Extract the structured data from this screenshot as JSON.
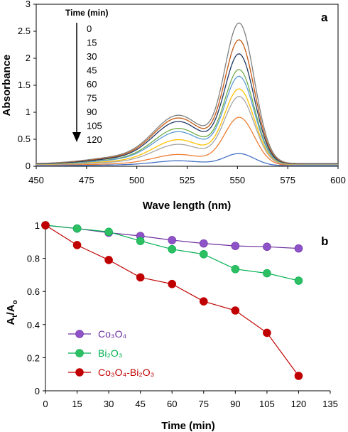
{
  "chart_data": [
    {
      "type": "line",
      "panel_label": "a",
      "xlabel": "Wave length (nm)",
      "ylabel": "Absorbance",
      "xlim": [
        450,
        600
      ],
      "ylim": [
        0,
        3
      ],
      "xticks": [
        "450",
        "475",
        "500",
        "525",
        "550",
        "575",
        "600"
      ],
      "yticks": [
        "0",
        "0.5",
        "1",
        "1.5",
        "2",
        "2.5",
        "3"
      ],
      "legend_title": "Time (min)",
      "legend_position": "top-left",
      "grid": false,
      "series": [
        {
          "name": "0",
          "color": "#7f7f7f",
          "peak": 2.55,
          "shoulder": 0.88,
          "base": 0.05
        },
        {
          "name": "15",
          "color": "#c55a11",
          "peak": 2.25,
          "shoulder": 0.84,
          "base": 0.04
        },
        {
          "name": "30",
          "color": "#203864",
          "peak": 2.0,
          "shoulder": 0.78,
          "base": 0.035
        },
        {
          "name": "45",
          "color": "#70ad47",
          "peak": 1.72,
          "shoulder": 0.66,
          "base": 0.03
        },
        {
          "name": "60",
          "color": "#5b9bd5",
          "peak": 1.6,
          "shoulder": 0.6,
          "base": 0.03
        },
        {
          "name": "75",
          "color": "#ffc000",
          "peak": 1.38,
          "shoulder": 0.46,
          "base": 0.025
        },
        {
          "name": "90",
          "color": "#a5a5a5",
          "peak": 1.25,
          "shoulder": 0.38,
          "base": 0.02
        },
        {
          "name": "105",
          "color": "#ed7d31",
          "peak": 0.88,
          "shoulder": 0.2,
          "base": 0.015
        },
        {
          "name": "120",
          "color": "#4472c4",
          "peak": 0.22,
          "shoulder": 0.09,
          "base": 0.01
        }
      ]
    },
    {
      "type": "line",
      "panel_label": "b",
      "xlabel": "Time (min)",
      "ylabel": "At/Ao",
      "xlim": [
        0,
        135
      ],
      "ylim": [
        0,
        1
      ],
      "xticks": [
        "0",
        "15",
        "30",
        "45",
        "60",
        "75",
        "90",
        "105",
        "120",
        "135"
      ],
      "yticks": [
        "0",
        "0.2",
        "0.4",
        "0.6",
        "0.8",
        "1"
      ],
      "legend_position": "bottom-left",
      "grid": false,
      "x": [
        0,
        15,
        30,
        45,
        60,
        75,
        90,
        105,
        120
      ],
      "series": [
        {
          "name": "Co3O4",
          "color": "#7030a0",
          "marker": "#8e52c9",
          "values": [
            1.0,
            0.98,
            0.955,
            0.935,
            0.91,
            0.89,
            0.875,
            0.87,
            0.86
          ]
        },
        {
          "name": "Bi2O3",
          "color": "#00b050",
          "marker": "#2ebf63",
          "values": [
            1.0,
            0.98,
            0.96,
            0.905,
            0.855,
            0.825,
            0.735,
            0.71,
            0.665
          ]
        },
        {
          "name": "Co3O4-Bi2O3",
          "color": "#c00000",
          "marker": "#c00000",
          "values": [
            1.0,
            0.88,
            0.79,
            0.685,
            0.645,
            0.54,
            0.485,
            0.35,
            0.09
          ]
        }
      ]
    }
  ]
}
